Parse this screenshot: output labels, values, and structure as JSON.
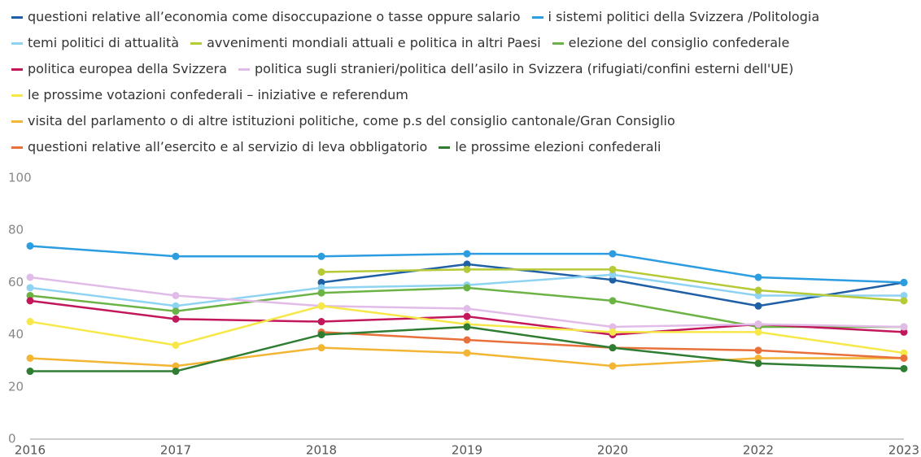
{
  "chart_data": {
    "type": "line",
    "categories": [
      "2016",
      "2017",
      "2018",
      "2019",
      "2020",
      "2022",
      "2023"
    ],
    "ylim": [
      0,
      100
    ],
    "yticks": [
      0,
      20,
      40,
      60,
      80,
      100
    ],
    "grid": false,
    "series": [
      {
        "name": "questioni relative all’economia come disoccupazione o tasse oppure salario",
        "color": "#1e5fa6",
        "values": [
          null,
          null,
          60,
          67,
          61,
          51,
          60
        ]
      },
      {
        "name": "i sistemi politici della Svizzera /Politologia",
        "color": "#2b9de0",
        "values": [
          74,
          70,
          70,
          71,
          71,
          62,
          60
        ]
      },
      {
        "name": "temi politici di attualità",
        "color": "#8fd3f2",
        "values": [
          58,
          51,
          58,
          59,
          63,
          55,
          55
        ]
      },
      {
        "name": "avvenimenti mondiali attuali e politica in altri Paesi",
        "color": "#b6c936",
        "values": [
          null,
          null,
          64,
          65,
          65,
          57,
          53
        ]
      },
      {
        "name": "elezione del consiglio confederale",
        "color": "#6cb346",
        "values": [
          55,
          49,
          56,
          58,
          53,
          43,
          43
        ]
      },
      {
        "name": "politica europea della Svizzera",
        "color": "#c2185b",
        "values": [
          53,
          46,
          45,
          47,
          40,
          44,
          41
        ]
      },
      {
        "name": "politica sugli stranieri/politica dell’asilo in Svizzera (rifugiati/confini esterni dell'UE)",
        "color": "#e2bce8",
        "values": [
          62,
          55,
          51,
          50,
          43,
          44,
          43
        ]
      },
      {
        "name": "le prossime votazioni confederali – iniziative e referendum",
        "color": "#f7e84a",
        "values": [
          45,
          36,
          51,
          44,
          41,
          41,
          33
        ]
      },
      {
        "name": "visita del parlamento o di altre istituzioni politiche, come p.s del consiglio cantonale/Gran Consiglio",
        "color": "#f2b534",
        "values": [
          31,
          28,
          35,
          33,
          28,
          31,
          31
        ]
      },
      {
        "name": "questioni relative all’esercito e al servizio di leva obbligatorio",
        "color": "#e8713b",
        "values": [
          null,
          null,
          41,
          38,
          35,
          34,
          31
        ]
      },
      {
        "name": "le prossime elezioni confederali",
        "color": "#2f7d33",
        "values": [
          26,
          26,
          40,
          43,
          35,
          29,
          27
        ]
      }
    ]
  }
}
